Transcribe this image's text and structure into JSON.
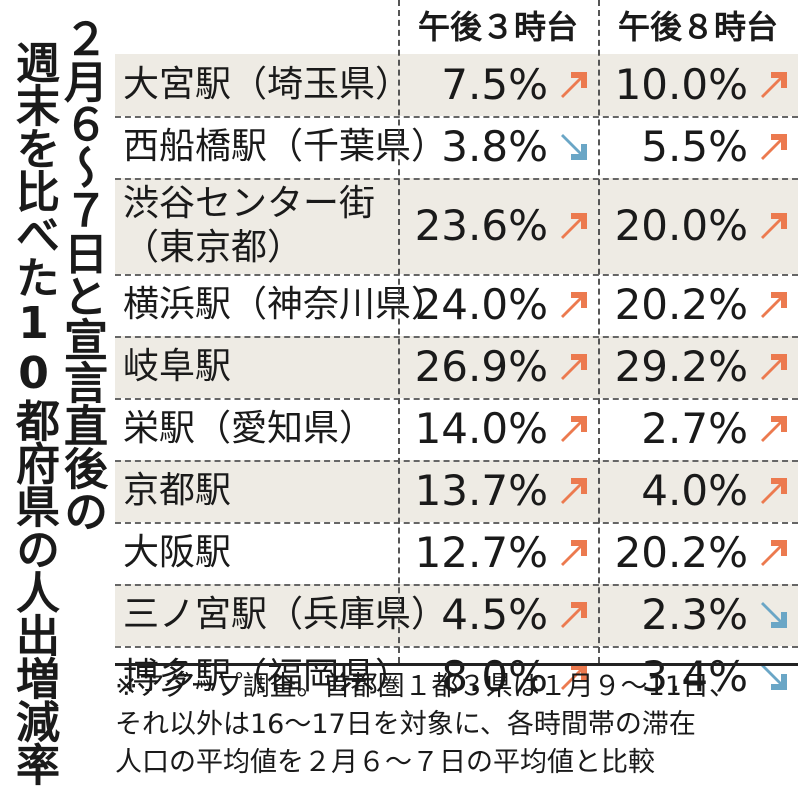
{
  "title": {
    "line1": "２月６～７日と宣言直後の",
    "line2": "週末を比べた10都府県の人出増減率"
  },
  "headers": [
    "午後３時台",
    "午後８時台"
  ],
  "colors": {
    "up": "#ec7a4f",
    "down": "#6aa6c6",
    "shade": "#eeebe4"
  },
  "rows": [
    {
      "name": [
        "大宮駅（埼玉県）"
      ],
      "pm3": "7.5%",
      "pm3_dir": "up-arrow-icon",
      "pm8": "10.0%",
      "pm8_dir": "up-arrow-icon"
    },
    {
      "name": [
        "西船橋駅（千葉県）"
      ],
      "pm3": "3.8%",
      "pm3_dir": "down-arrow-icon",
      "pm8": "5.5%",
      "pm8_dir": "up-arrow-icon"
    },
    {
      "name": [
        "渋谷センター街",
        "（東京都）"
      ],
      "pm3": "23.6%",
      "pm3_dir": "up-arrow-icon",
      "pm8": "20.0%",
      "pm8_dir": "up-arrow-icon"
    },
    {
      "name": [
        "横浜駅（神奈川県）"
      ],
      "pm3": "24.0%",
      "pm3_dir": "up-arrow-icon",
      "pm8": "20.2%",
      "pm8_dir": "up-arrow-icon"
    },
    {
      "name": [
        "岐阜駅"
      ],
      "pm3": "26.9%",
      "pm3_dir": "up-arrow-icon",
      "pm8": "29.2%",
      "pm8_dir": "up-arrow-icon"
    },
    {
      "name": [
        "栄駅（愛知県）"
      ],
      "pm3": "14.0%",
      "pm3_dir": "up-arrow-icon",
      "pm8": "2.7%",
      "pm8_dir": "up-arrow-icon"
    },
    {
      "name": [
        "京都駅"
      ],
      "pm3": "13.7%",
      "pm3_dir": "up-arrow-icon",
      "pm8": "4.0%",
      "pm8_dir": "up-arrow-icon"
    },
    {
      "name": [
        "大阪駅"
      ],
      "pm3": "12.7%",
      "pm3_dir": "up-arrow-icon",
      "pm8": "20.2%",
      "pm8_dir": "up-arrow-icon"
    },
    {
      "name": [
        "三ノ宮駅（兵庫県）"
      ],
      "pm3": "4.5%",
      "pm3_dir": "up-arrow-icon",
      "pm8": "2.3%",
      "pm8_dir": "down-arrow-icon"
    },
    {
      "name": [
        "博多駅（福岡県）"
      ],
      "pm3": "8.0%",
      "pm3_dir": "up-arrow-icon",
      "pm8": "3.4%",
      "pm8_dir": "down-arrow-icon"
    }
  ],
  "note": [
    "※アグープ調査。首都圏１都３県は１月９～11日、",
    "それ以外は16～17日を対象に、各時間帯の滞在",
    "人口の平均値を２月６～７日の平均値と比較"
  ]
}
